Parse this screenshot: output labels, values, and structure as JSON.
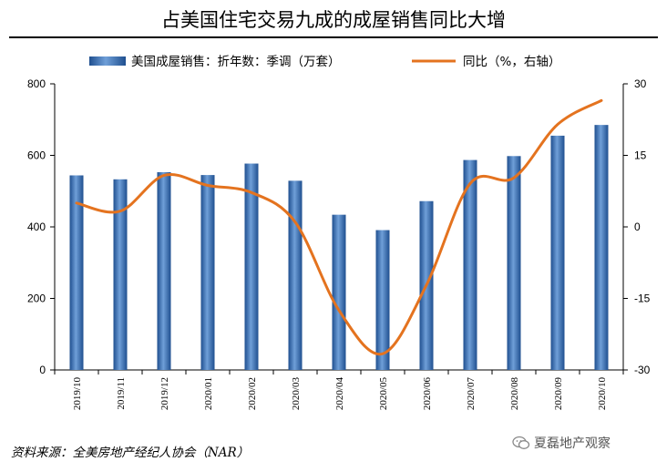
{
  "title": "占美国住宅交易九成的成屋销售同比大增",
  "source": "资料来源：全美房地产经纪人协会（NAR）",
  "watermark": "夏磊地产观察",
  "watermark_icon": "wechat-icon",
  "colors": {
    "bar": "#3d74b8",
    "bar_dark": "#1f4f8f",
    "line": "#e4731f"
  },
  "chart_data": {
    "type": "bar+line",
    "categories": [
      "2019/10",
      "2019/11",
      "2019/12",
      "2020/01",
      "2020/02",
      "2020/03",
      "2020/04",
      "2020/05",
      "2020/06",
      "2020/07",
      "2020/08",
      "2020/09",
      "2020/10"
    ],
    "series": [
      {
        "name": "美国成屋销售：折年数：季调（万套）",
        "type": "bar",
        "axis": "left",
        "values": [
          544,
          533,
          553,
          545,
          577,
          529,
          434,
          391,
          472,
          587,
          598,
          655,
          685
        ]
      },
      {
        "name": "同比（%，右轴）",
        "type": "line",
        "axis": "right",
        "values": [
          5,
          3.3,
          10.8,
          8.7,
          7.2,
          1,
          -17.5,
          -26.6,
          -12.2,
          9.1,
          10.3,
          21.5,
          26.5
        ]
      }
    ],
    "yleft": {
      "ylim": [
        0,
        800
      ],
      "ticks": [
        0,
        200,
        400,
        600,
        800
      ]
    },
    "yright": {
      "ylim": [
        -30,
        30
      ],
      "ticks": [
        -30,
        -15,
        0,
        15,
        30
      ]
    },
    "legend": "top",
    "grid": false
  }
}
